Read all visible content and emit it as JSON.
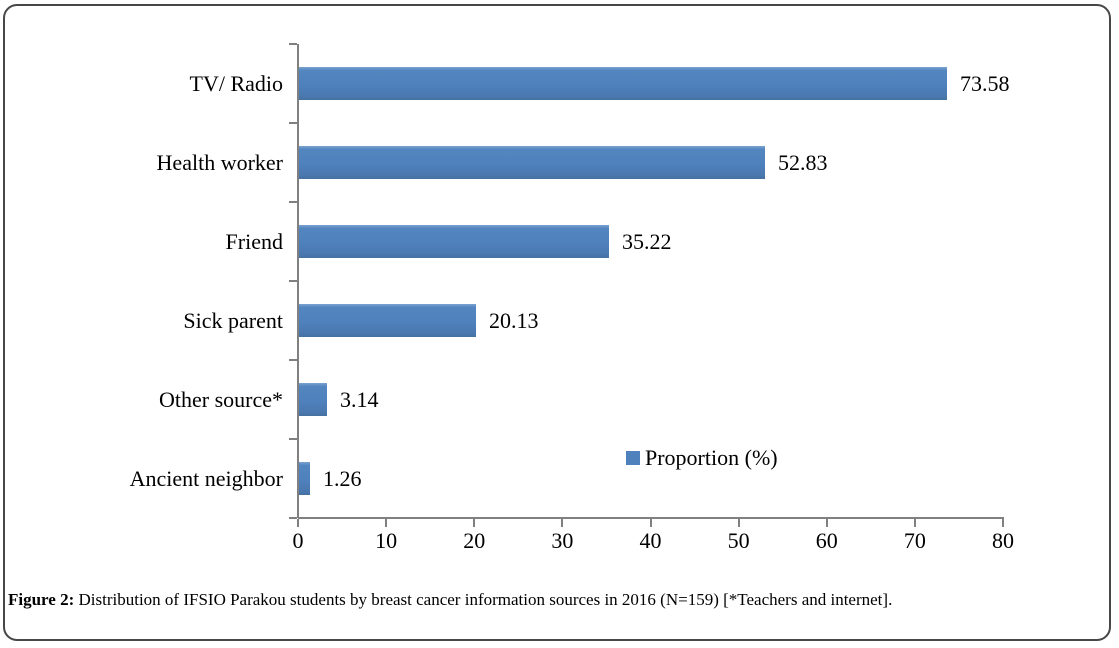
{
  "figure": {
    "caption_label": "Figure 2:",
    "caption_text": " Distribution of IFSIO Parakou students by breast cancer information sources in 2016 (N=159) [*Teachers and internet]."
  },
  "chart_data": {
    "type": "bar",
    "orientation": "horizontal",
    "title": "",
    "categories": [
      "TV/ Radio",
      "Health worker",
      "Friend",
      "Sick parent",
      "Other source*",
      "Ancient neighbor"
    ],
    "values": [
      73.58,
      52.83,
      35.22,
      20.13,
      3.14,
      1.26
    ],
    "data_labels": [
      "73.58",
      "52.83",
      "35.22",
      "20.13",
      "3.14",
      "1.26"
    ],
    "series_name": "Proportion (%)",
    "xlabel": "",
    "ylabel": "",
    "xlim": [
      0,
      80
    ],
    "x_ticks": [
      "0",
      "10",
      "20",
      "30",
      "40",
      "50",
      "60",
      "70",
      "80"
    ],
    "grid": false,
    "legend": {
      "label": "Proportion (%)",
      "position": "inside-right-below-bars"
    },
    "colors": {
      "bar": "#4f81bd",
      "axis": "#808080",
      "text": "#000000"
    }
  }
}
